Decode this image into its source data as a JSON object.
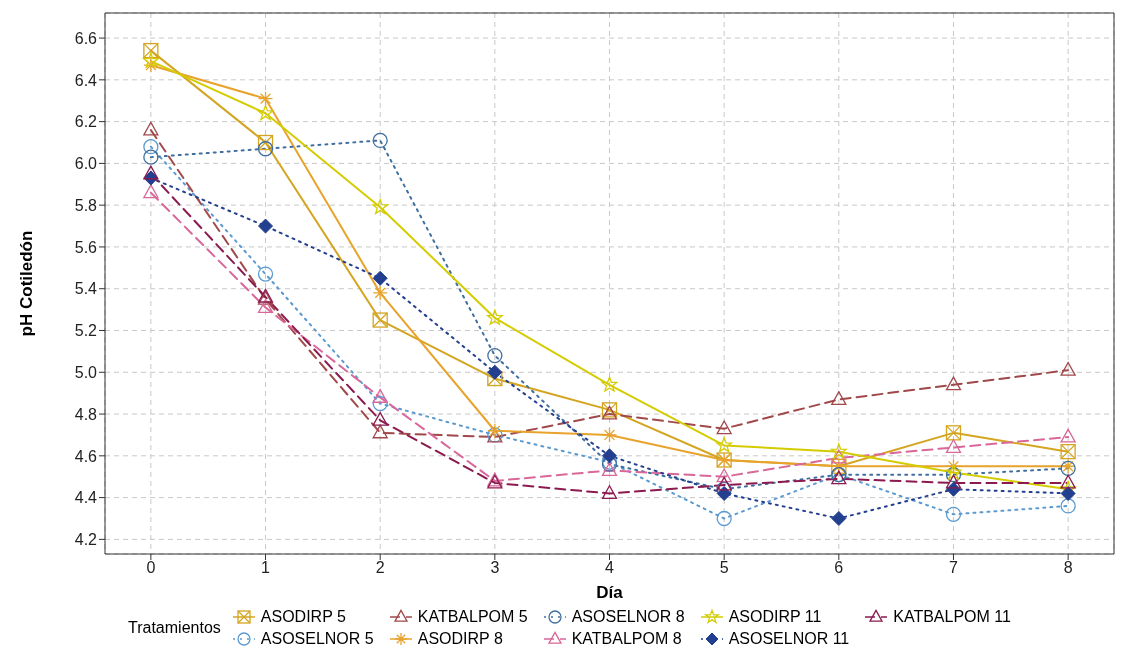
{
  "chart_data": {
    "type": "line",
    "xlabel": "Día",
    "ylabel": "pH Cotiledón",
    "legend_title": "Tratamientos",
    "legend": "bottom",
    "grid": true,
    "x": [
      0,
      1,
      2,
      3,
      4,
      5,
      6,
      7,
      8
    ],
    "xlim": [
      -0.4,
      8.4
    ],
    "xticks": [
      0,
      1,
      2,
      3,
      4,
      5,
      6,
      7,
      8
    ],
    "ylim": [
      4.13,
      6.72
    ],
    "yticks": [
      4.2,
      4.4,
      4.6,
      4.8,
      {
        "value": 5,
        "label": "5.0"
      },
      5.2,
      5.4,
      5.6,
      5.8,
      {
        "value": 6,
        "label": "6.0"
      },
      6.2,
      6.4,
      6.6
    ],
    "series": [
      {
        "name": "ASODIRP 5",
        "color": "#d4a520",
        "marker": "square",
        "line_style": "solid",
        "values": [
          6.54,
          6.1,
          5.25,
          4.97,
          4.82,
          4.58,
          4.55,
          4.71,
          4.62
        ]
      },
      {
        "name": "ASOSELNOR 5",
        "color": "#5a9ad0",
        "marker": "circle",
        "line_style": "dotted",
        "values": [
          6.08,
          5.47,
          4.85,
          4.7,
          4.57,
          4.3,
          4.51,
          4.32,
          4.36
        ]
      },
      {
        "name": "KATBALPOM 5",
        "color": "#a0484a",
        "marker": "triangle",
        "line_style": "dashed",
        "values": [
          6.16,
          5.35,
          4.71,
          4.69,
          4.8,
          4.73,
          4.87,
          4.94,
          5.01
        ]
      },
      {
        "name": "ASODIRP 8",
        "color": "#e8a32c",
        "marker": "cross",
        "line_style": "solid",
        "values": [
          6.47,
          6.31,
          5.38,
          4.72,
          4.7,
          4.58,
          4.55,
          4.55,
          4.55
        ]
      },
      {
        "name": "ASOSELNOR 8",
        "color": "#3f6f9f",
        "marker": "circle",
        "line_style": "dotted",
        "values": [
          6.03,
          6.07,
          6.11,
          5.08,
          4.56,
          4.44,
          4.51,
          4.51,
          4.54
        ]
      },
      {
        "name": "KATBALPOM 8",
        "color": "#d9679a",
        "marker": "triangle",
        "line_style": "dashed",
        "values": [
          5.86,
          5.31,
          4.88,
          4.48,
          4.53,
          4.5,
          4.59,
          4.64,
          4.69
        ]
      },
      {
        "name": "ASODIRP 11",
        "color": "#d4cc00",
        "marker": "star",
        "line_style": "solid",
        "values": [
          6.49,
          6.24,
          5.79,
          5.26,
          4.94,
          4.65,
          4.62,
          4.52,
          4.44
        ]
      },
      {
        "name": "ASOSELNOR 11",
        "color": "#233f8f",
        "marker": "diamond",
        "line_style": "dotted",
        "values": [
          5.93,
          5.7,
          5.45,
          5.0,
          4.6,
          4.42,
          4.3,
          4.44,
          4.42
        ]
      },
      {
        "name": "KATBALPOM 11",
        "color": "#8b1a4f",
        "marker": "triangle",
        "line_style": "dashed",
        "values": [
          5.95,
          5.36,
          4.77,
          4.47,
          4.42,
          4.46,
          4.49,
          4.47,
          4.47
        ]
      }
    ]
  }
}
